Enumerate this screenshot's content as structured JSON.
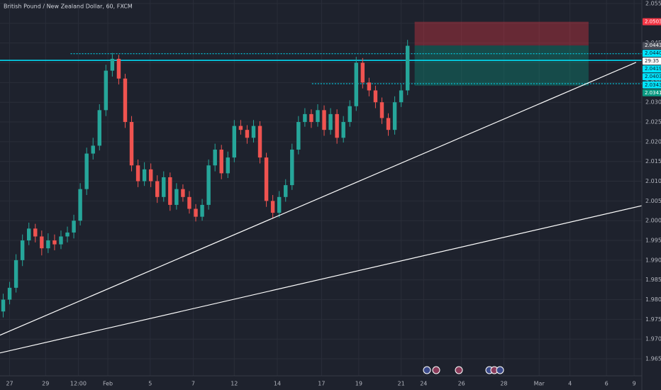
{
  "chart_data": {
    "type": "candlestick",
    "title": "British Pound / New Zealand Dollar, 60, FXCM",
    "up_color": "#26a69a",
    "down_color": "#ef5350",
    "grid": true,
    "xlim": [
      -0.5,
      99.5
    ],
    "ylim": [
      1.9607,
      2.0559
    ],
    "xticks": [
      {
        "value": 1.0,
        "label": "27"
      },
      {
        "value": 6.6,
        "label": "29"
      },
      {
        "value": 11.7,
        "label": "12:00"
      },
      {
        "value": 16.3,
        "label": "Feb"
      },
      {
        "value": 22.9,
        "label": "5"
      },
      {
        "value": 29.6,
        "label": "7"
      },
      {
        "value": 36.0,
        "label": "12"
      },
      {
        "value": 42.7,
        "label": "14"
      },
      {
        "value": 49.6,
        "label": "17"
      },
      {
        "value": 55.4,
        "label": "19"
      },
      {
        "value": 62.0,
        "label": "21"
      },
      {
        "value": 65.5,
        "label": "24"
      },
      {
        "value": 71.4,
        "label": "26"
      },
      {
        "value": 78.0,
        "label": "28"
      },
      {
        "value": 83.5,
        "label": "Mar"
      },
      {
        "value": 88.3,
        "label": "4"
      },
      {
        "value": 94.0,
        "label": "6"
      },
      {
        "value": 98.3,
        "label": "9"
      }
    ],
    "yticks": [
      {
        "value": 1.965,
        "label": "1.96500"
      },
      {
        "value": 1.97,
        "label": "1.97000"
      },
      {
        "value": 1.975,
        "label": "1.97500"
      },
      {
        "value": 1.98,
        "label": "1.98000"
      },
      {
        "value": 1.985,
        "label": "1.98500"
      },
      {
        "value": 1.99,
        "label": "1.99000"
      },
      {
        "value": 1.995,
        "label": "1.99500"
      },
      {
        "value": 2.0,
        "label": "2.00000"
      },
      {
        "value": 2.005,
        "label": "2.00500"
      },
      {
        "value": 2.01,
        "label": "2.01000"
      },
      {
        "value": 2.015,
        "label": "2.01500"
      },
      {
        "value": 2.02,
        "label": "2.02000"
      },
      {
        "value": 2.025,
        "label": "2.02500"
      },
      {
        "value": 2.03,
        "label": "2.03000"
      },
      {
        "value": 2.035,
        "label": "2.03500"
      },
      {
        "value": 2.04,
        "label": "2.04000"
      },
      {
        "value": 2.045,
        "label": "2.04500"
      },
      {
        "value": 2.05,
        "label": "2.05000"
      },
      {
        "value": 2.055,
        "label": "2.05500"
      }
    ],
    "x": [
      0,
      1,
      2,
      3,
      4,
      5,
      6,
      7,
      8,
      9,
      10,
      11,
      12,
      13,
      14,
      15,
      16,
      17,
      18,
      19,
      20,
      21,
      22,
      23,
      24,
      25,
      26,
      27,
      28,
      29,
      30,
      31,
      32,
      33,
      34,
      35,
      36,
      37,
      38,
      39,
      40,
      41,
      42,
      43,
      44,
      45,
      46,
      47,
      48,
      49,
      50,
      51,
      52,
      53,
      54,
      55,
      56,
      57,
      58,
      59,
      60,
      61,
      62,
      63
    ],
    "open": [
      1.977,
      1.98,
      1.983,
      1.99,
      1.995,
      1.998,
      1.996,
      1.993,
      1.995,
      1.994,
      1.996,
      1.997,
      2.0,
      2.008,
      2.017,
      2.019,
      2.028,
      2.038,
      2.041,
      2.036,
      2.025,
      2.014,
      2.01,
      2.013,
      2.01,
      2.006,
      2.011,
      2.004,
      2.008,
      2.006,
      2.003,
      2.001,
      2.004,
      2.014,
      2.018,
      2.012,
      2.016,
      2.024,
      2.023,
      2.021,
      2.024,
      2.016,
      2.005,
      2.002,
      2.006,
      2.009,
      2.018,
      2.025,
      2.027,
      2.025,
      2.028,
      2.023,
      2.027,
      2.021,
      2.025,
      2.029,
      2.04,
      2.035,
      2.033,
      2.03,
      2.026,
      2.023,
      2.03,
      2.033
    ],
    "high": [
      1.9815,
      1.9845,
      1.9915,
      1.9965,
      1.9995,
      1.9992,
      1.9975,
      1.9968,
      1.9965,
      1.9975,
      1.9985,
      2.0015,
      2.0095,
      2.0185,
      2.021,
      2.0295,
      2.0395,
      2.0425,
      2.042,
      2.0372,
      2.0265,
      2.0155,
      2.0148,
      2.0145,
      2.0115,
      2.0125,
      2.0122,
      2.0095,
      2.0092,
      2.0075,
      2.0042,
      2.0055,
      2.0155,
      2.0195,
      2.0192,
      2.0175,
      2.0255,
      2.0255,
      2.0242,
      2.0255,
      2.0252,
      2.0172,
      2.0065,
      2.0075,
      2.0105,
      2.0195,
      2.0265,
      2.0285,
      2.0282,
      2.0295,
      2.0292,
      2.0285,
      2.0282,
      2.0265,
      2.0305,
      2.0415,
      2.0412,
      2.0362,
      2.0342,
      2.0312,
      2.0272,
      2.0315,
      2.0345,
      2.0458
    ],
    "low": [
      1.9755,
      1.9788,
      1.9818,
      1.9885,
      1.9938,
      1.9945,
      1.9912,
      1.9918,
      1.9925,
      1.9928,
      1.9945,
      1.9955,
      1.9988,
      2.0065,
      2.0155,
      2.0178,
      2.0265,
      2.0365,
      2.0345,
      2.0235,
      2.0125,
      2.0085,
      2.0088,
      2.0085,
      2.0045,
      2.0048,
      2.0025,
      2.0028,
      2.0048,
      2.0018,
      1.9998,
      2.0,
      2.0028,
      2.0125,
      2.0105,
      2.0108,
      2.0148,
      2.0218,
      2.0195,
      2.0198,
      2.0145,
      2.0035,
      2.0005,
      2.0008,
      2.0048,
      2.0078,
      2.0168,
      2.0238,
      2.0235,
      2.0238,
      2.0215,
      2.0218,
      2.0195,
      2.0198,
      2.0238,
      2.0278,
      2.0335,
      2.0315,
      2.0285,
      2.0245,
      2.0215,
      2.0218,
      2.0288,
      2.0318
    ],
    "close": [
      1.98,
      1.983,
      1.99,
      1.995,
      1.998,
      1.996,
      1.993,
      1.995,
      1.994,
      1.996,
      1.997,
      2.0,
      2.008,
      2.017,
      2.019,
      2.028,
      2.038,
      2.041,
      2.036,
      2.025,
      2.014,
      2.01,
      2.013,
      2.01,
      2.006,
      2.011,
      2.004,
      2.008,
      2.006,
      2.003,
      2.001,
      2.004,
      2.014,
      2.018,
      2.012,
      2.016,
      2.024,
      2.023,
      2.021,
      2.024,
      2.016,
      2.005,
      2.002,
      2.006,
      2.009,
      2.018,
      2.025,
      2.027,
      2.025,
      2.028,
      2.023,
      2.027,
      2.021,
      2.025,
      2.029,
      2.04,
      2.035,
      2.033,
      2.03,
      2.026,
      2.023,
      2.03,
      2.033,
      2.0443
    ],
    "position": {
      "x_start": 64.1,
      "x_end": 91.2,
      "stop": 2.05039,
      "entry": 2.04437,
      "target": 2.03418,
      "loss_color": "#f23645",
      "profit_color": "#089981"
    },
    "trend_lines": [
      {
        "x": [
          -0.5,
          98.6
        ],
        "y": [
          1.971,
          2.0401
        ],
        "color": "#ffffff"
      },
      {
        "x": [
          -0.5,
          99.5
        ],
        "y": [
          1.9665,
          2.0038
        ],
        "color": "#ffffff"
      }
    ],
    "horizontal_lines": [
      {
        "value": 2.0406,
        "x_start": -0.5,
        "style": "solid",
        "color": "#00e5ff"
      },
      {
        "value": 2.0423,
        "x_start": 10.5,
        "style": "dashed",
        "color": "#00e5ff"
      },
      {
        "value": 2.0347,
        "x_start": 48.1,
        "style": "dashed",
        "color": "#00e5ff"
      }
    ],
    "price_labels": [
      {
        "value": 2.05039,
        "color": "#f23645",
        "text_color": "#ffffff"
      },
      {
        "value": 2.04437,
        "color": "#4a4e59",
        "text_color": "#ffffff"
      },
      {
        "value": 2.04403,
        "color": "#00e5ff",
        "text_color": "#131722"
      },
      {
        "value": 2.0406,
        "label": "29:35",
        "color": "#ffffff",
        "text_color": "#131722"
      },
      {
        "value": 2.04194,
        "color": "#00e5ff",
        "text_color": "#131722"
      },
      {
        "value": 2.04033,
        "color": "#00e5ff",
        "text_color": "#131722"
      },
      {
        "value": 2.03439,
        "color": "#00e5ff",
        "text_color": "#131722"
      },
      {
        "value": 2.03418,
        "color": "#089981",
        "text_color": "#ffffff"
      }
    ]
  }
}
